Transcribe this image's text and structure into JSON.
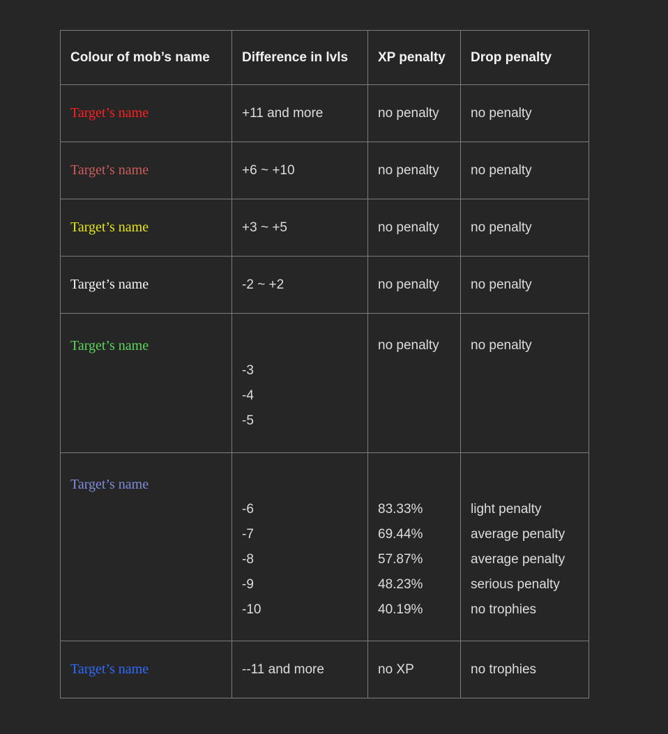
{
  "page": {
    "background": "#262626",
    "border_color": "#7d7d7d",
    "header_text_color": "#f2f2f2",
    "body_text_color": "#dddddd"
  },
  "table": {
    "headers": [
      "Colour of mob’s name",
      "Difference in lvls",
      "XP penalty",
      "Drop penalty"
    ],
    "rows": [
      {
        "name": {
          "text": "Target’s name",
          "color": "#ff1f1f"
        },
        "diff": "+11 and more",
        "xp": "no penalty",
        "drop": "no penalty"
      },
      {
        "name": {
          "text": "Target’s name",
          "color": "#cd5c5c"
        },
        "diff": "+6 ~ +10",
        "xp": "no penalty",
        "drop": "no penalty"
      },
      {
        "name": {
          "text": "Target’s name",
          "color": "#e6e61a"
        },
        "diff": "+3 ~ +5",
        "xp": "no penalty",
        "drop": "no penalty"
      },
      {
        "name": {
          "text": "Target’s name",
          "color": "#f5f5f5"
        },
        "diff": "-2 ~ +2",
        "xp": "no penalty",
        "drop": "no penalty"
      },
      {
        "name": {
          "text": "Target’s name",
          "color": "#5cd65c"
        },
        "diff": [
          "-3",
          "-4",
          "-5"
        ],
        "xp": "no penalty",
        "drop": "no penalty"
      },
      {
        "name": {
          "text": "Target’s name",
          "color": "#7e8ddb"
        },
        "diff": [
          "-6",
          "-7",
          "-8",
          "-9",
          "-10"
        ],
        "xp": [
          "83.33%",
          "69.44%",
          "57.87%",
          "48.23%",
          "40.19%"
        ],
        "drop": [
          "light penalty",
          "average penalty",
          "average penalty",
          "serious penalty",
          "no trophies"
        ]
      },
      {
        "name": {
          "text": "Target’s name",
          "color": "#2e6bff"
        },
        "diff": "--11 and more",
        "xp": "no XP",
        "drop": "no trophies"
      }
    ]
  }
}
